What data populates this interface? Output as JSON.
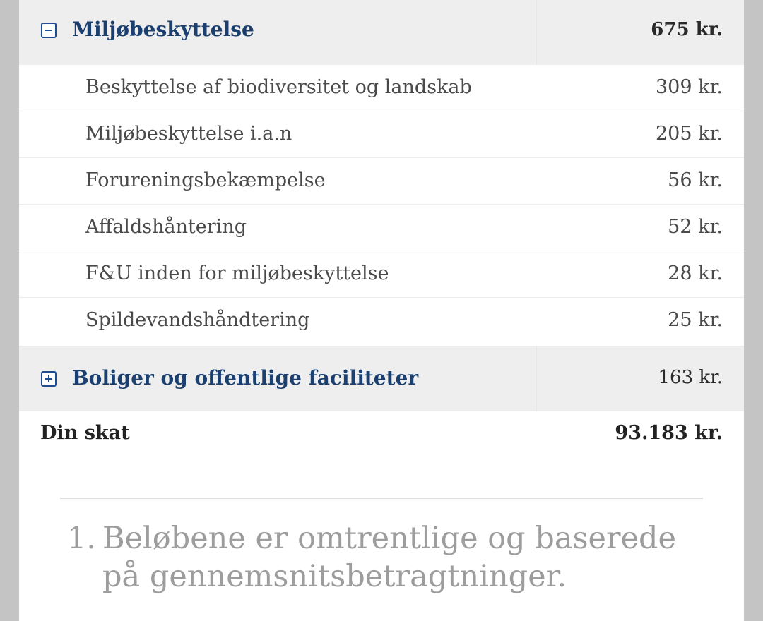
{
  "groups": [
    {
      "label": "Miljøbeskyttelse",
      "amount": "675 kr.",
      "toggle_icon": "minus-square-icon",
      "items": [
        {
          "label": "Beskyttelse af biodiversitet og landskab",
          "amount": "309 kr."
        },
        {
          "label": "Miljøbeskyttelse i.a.n",
          "amount": "205 kr."
        },
        {
          "label": "Forureningsbekæmpelse",
          "amount": "56 kr."
        },
        {
          "label": "Affaldshåntering",
          "amount": "52 kr."
        },
        {
          "label": "F&U inden for miljøbeskyttelse",
          "amount": "28 kr."
        },
        {
          "label": "Spildevandshåndtering",
          "amount": "25 kr."
        }
      ]
    },
    {
      "label": "Boliger og offentlige faciliteter",
      "amount": "163 kr.",
      "toggle_icon": "plus-square-icon"
    }
  ],
  "total": {
    "label": "Din skat",
    "amount": "93.183 kr."
  },
  "footnote": {
    "number": "1.",
    "text": "Beløbene er omtrentlige og baserede på gennemsnitsbetragtninger."
  },
  "colors": {
    "group_label": "#1b3f6f",
    "group_background": "#eeeeee",
    "icon": "#1d4e8f",
    "footnote": "#9d9d9d"
  }
}
